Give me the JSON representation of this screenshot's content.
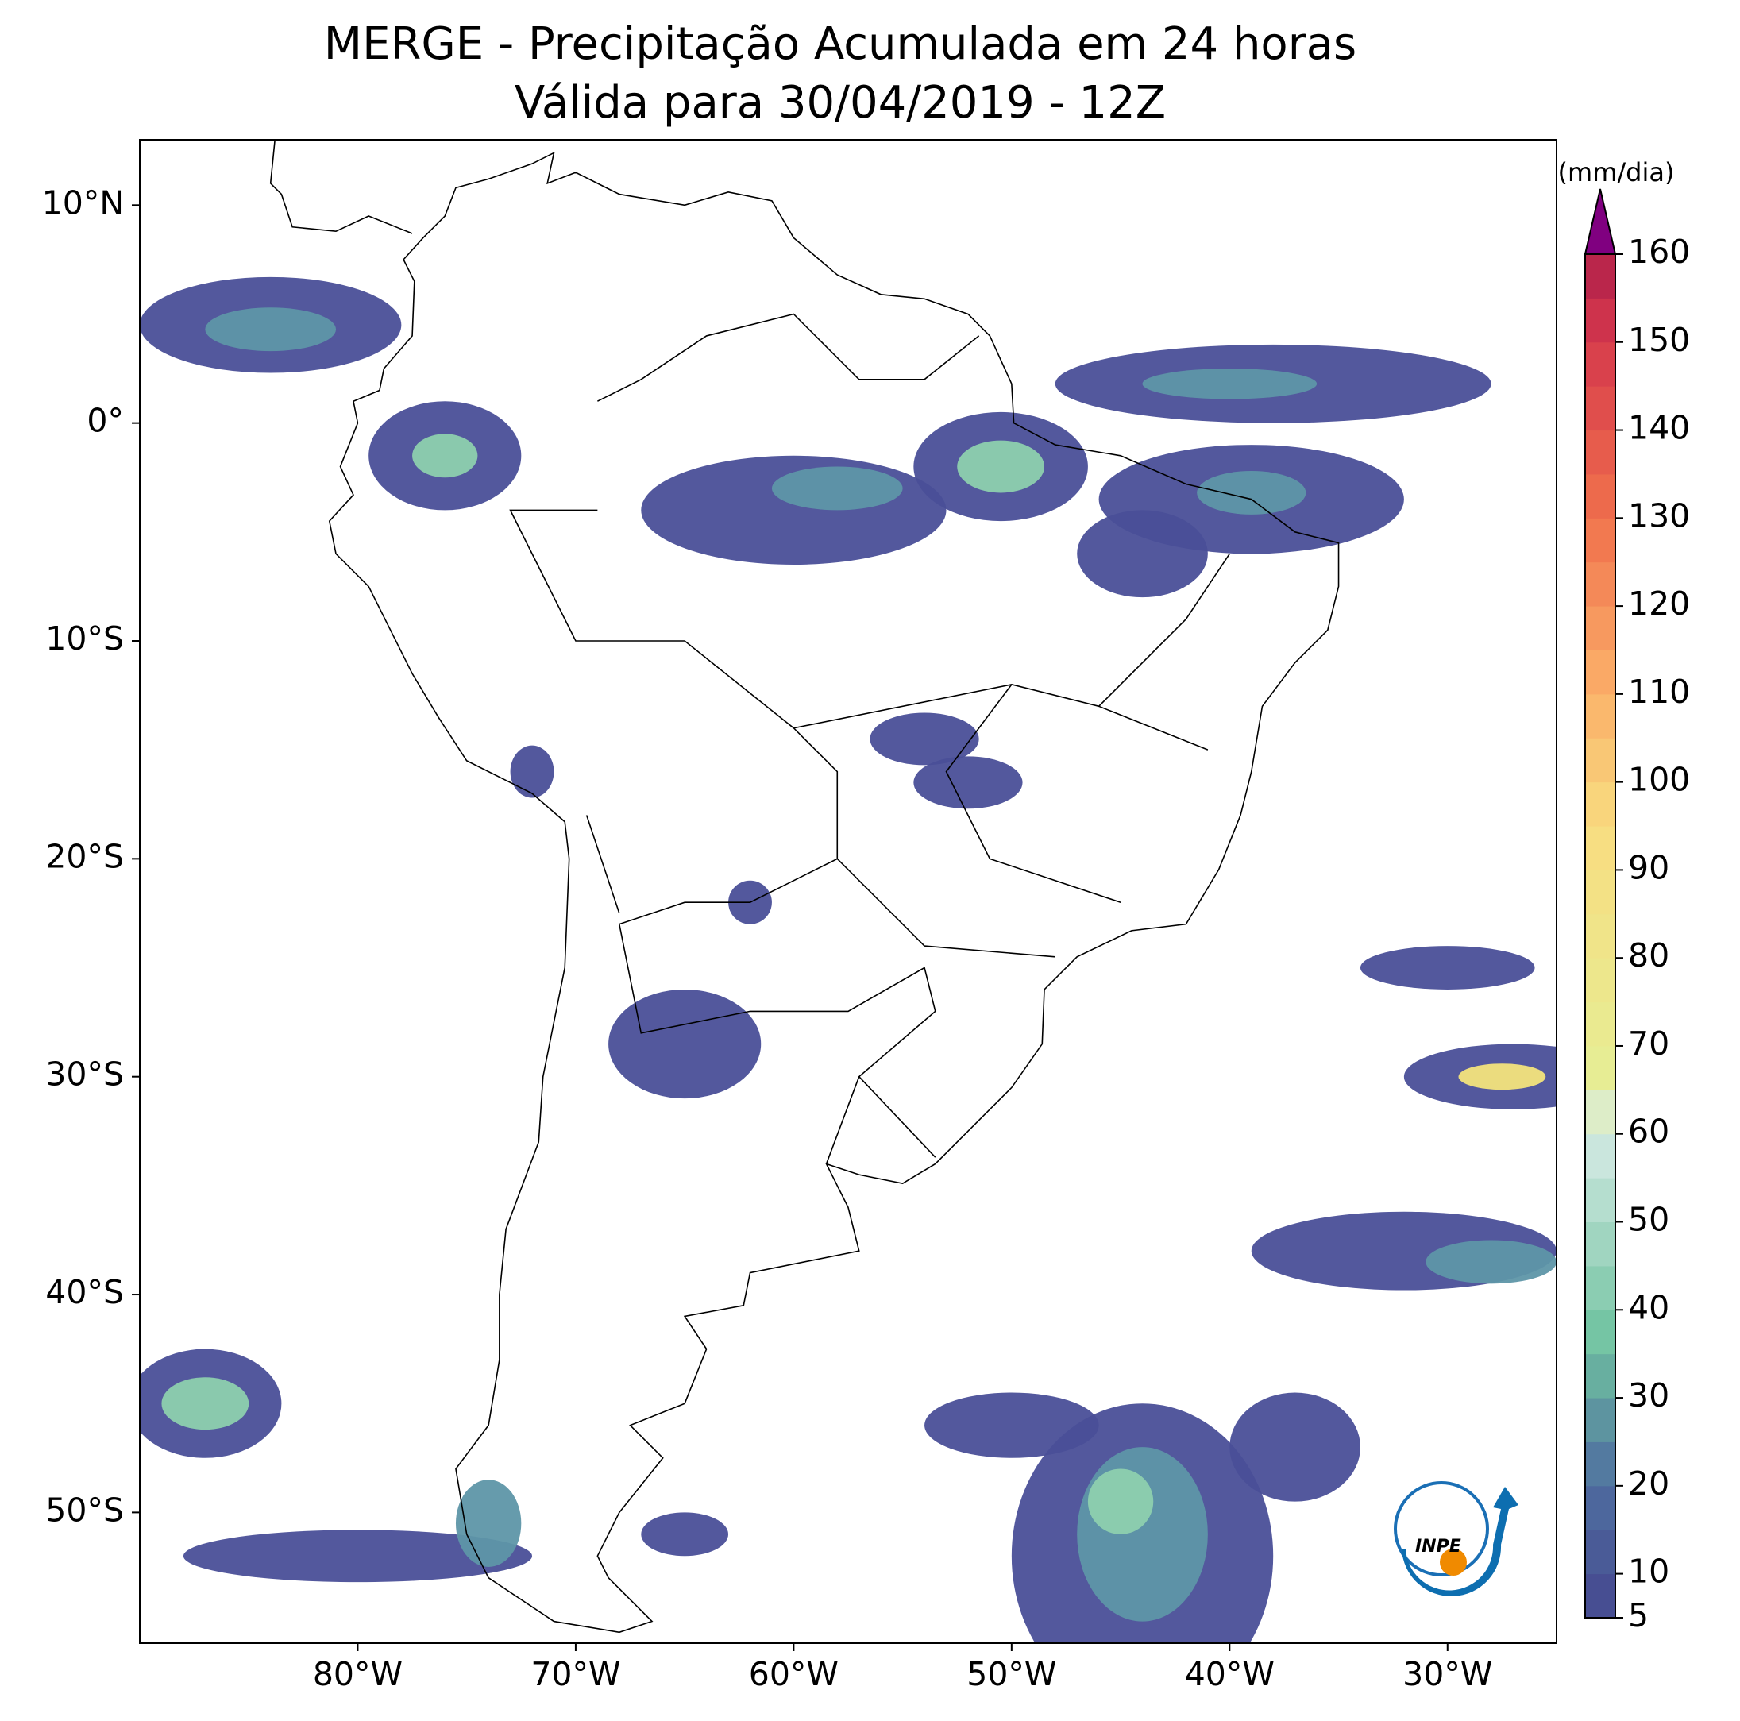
{
  "title": "MERGE - Precipitação Acumulada em 24 horas",
  "subtitle": "Válida para 30/04/2019 - 12Z",
  "map": {
    "xlim": [
      -90,
      -25
    ],
    "ylim": [
      -56,
      13
    ],
    "xticks": [
      {
        "value": -80,
        "label": "80°W"
      },
      {
        "value": -70,
        "label": "70°W"
      },
      {
        "value": -60,
        "label": "60°W"
      },
      {
        "value": -50,
        "label": "50°W"
      },
      {
        "value": -40,
        "label": "40°W"
      },
      {
        "value": -30,
        "label": "30°W"
      }
    ],
    "yticks": [
      {
        "value": 10,
        "label": "10°N"
      },
      {
        "value": 0,
        "label": "0°"
      },
      {
        "value": -10,
        "label": "10°S"
      },
      {
        "value": -20,
        "label": "20°S"
      },
      {
        "value": -30,
        "label": "30°S"
      },
      {
        "value": -40,
        "label": "40°S"
      },
      {
        "value": -50,
        "label": "50°S"
      }
    ]
  },
  "colorbar": {
    "label": "(mm/dia)",
    "lim": [
      5,
      160
    ],
    "ticks": [
      5,
      10,
      20,
      30,
      40,
      50,
      60,
      70,
      80,
      90,
      100,
      110,
      120,
      130,
      140,
      150,
      160
    ]
  },
  "logo_text": "INPE"
}
